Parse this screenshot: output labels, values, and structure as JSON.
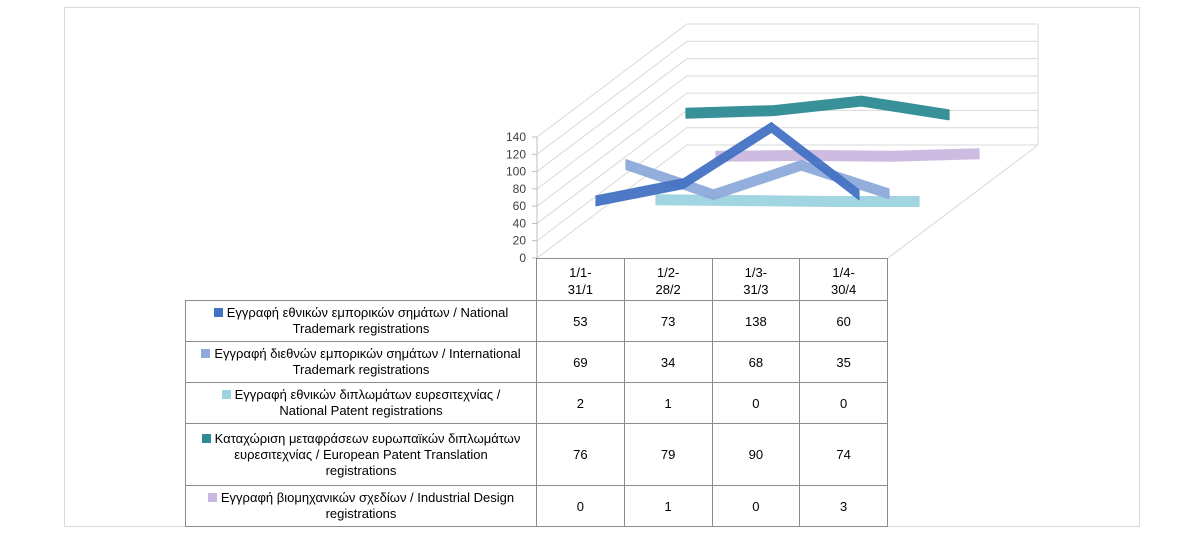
{
  "chart_data": {
    "type": "line",
    "categories": [
      "1/1-31/1",
      "1/2-28/2",
      "1/3-31/3",
      "1/4-30/4"
    ],
    "category_display": [
      [
        "1/1-",
        "31/1"
      ],
      [
        "1/2-",
        "28/2"
      ],
      [
        "1/3-",
        "31/3"
      ],
      [
        "1/4-",
        "30/4"
      ]
    ],
    "y_ticks": [
      "0",
      "20",
      "40",
      "60",
      "80",
      "100",
      "120",
      "140"
    ],
    "ylim": [
      0,
      140
    ],
    "grid": true,
    "legend": "data-table",
    "series": [
      {
        "name": "Εγγραφή εθνικών εμπορικών σημάτων / National Trademark registrations",
        "name_lines": [
          "Εγγραφή εθνικών εμπορικών σημάτων / National",
          "Trademark registrations"
        ],
        "color": "#4472c4",
        "values": [
          53,
          73,
          138,
          60
        ]
      },
      {
        "name": "Εγγραφή διεθνών εμπορικών σημάτων / International Trademark registrations",
        "name_lines": [
          "Εγγραφή διεθνών εμπορικών σημάτων / International",
          "Trademark registrations"
        ],
        "color": "#8eaadb",
        "values": [
          69,
          34,
          68,
          35
        ]
      },
      {
        "name": "Εγγραφή εθνικών διπλωμάτων ευρεσιτεχνίας / National Patent registrations",
        "name_lines": [
          "Εγγραφή εθνικών διπλωμάτων ευρεσιτεχνίας /",
          "National Patent registrations"
        ],
        "color": "#9dd3e0",
        "values": [
          2,
          1,
          0,
          0
        ]
      },
      {
        "name": "Καταχώριση μεταφράσεων ευρωπαϊκών διπλωμάτων ευρεσιτεχνίας / European Patent Translation registrations",
        "name_lines": [
          "Καταχώριση μεταφράσεων ευρωπαϊκών διπλωμάτων",
          "ευρεσιτεχνίας / European Patent Translation",
          "registrations"
        ],
        "color": "#2e8b94",
        "values": [
          76,
          79,
          90,
          74
        ]
      },
      {
        "name": "Εγγραφή βιομηχανικών σχεδίων / Industrial Design registrations",
        "name_lines": [
          "Εγγραφή βιομηχανικών σχεδίων / Industrial Design",
          "registrations"
        ],
        "color": "#cbb8e0",
        "values": [
          0,
          1,
          0,
          3
        ]
      }
    ]
  }
}
